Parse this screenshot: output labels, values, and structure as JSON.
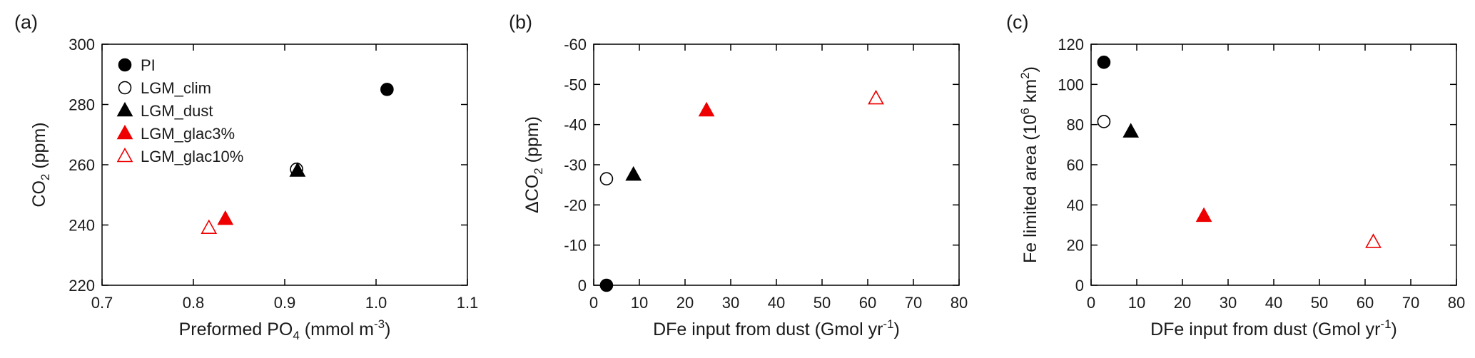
{
  "series_styles": {
    "PI": {
      "marker": "circle",
      "fill": "#000000",
      "stroke": "#000000"
    },
    "LGM_clim": {
      "marker": "circle",
      "fill": "#ffffff",
      "stroke": "#000000"
    },
    "LGM_dust": {
      "marker": "triangle",
      "fill": "#000000",
      "stroke": "#000000"
    },
    "LGM_glac3%": {
      "marker": "triangle",
      "fill": "#ee0000",
      "stroke": "#ee0000"
    },
    "LGM_glac10%": {
      "marker": "triangle",
      "fill": "#ffffff",
      "stroke": "#ee0000"
    }
  },
  "chart_data": [
    {
      "type": "scatter",
      "panel": "(a)",
      "xlabel": "Preformed PO4 (mmol m-3)",
      "ylabel": "CO2 (ppm)",
      "xlim": [
        0.7,
        1.1
      ],
      "ylim": [
        220,
        300
      ],
      "xticks": [
        "0.7",
        "0.8",
        "0.9",
        "1.0",
        "1.1"
      ],
      "yticks": [
        "220",
        "240",
        "260",
        "280",
        "300"
      ],
      "grid": false,
      "legend": {
        "position": "top-left",
        "entries": [
          "PI",
          "LGM_clim",
          "LGM_dust",
          "LGM_glac3%",
          "LGM_glac10%"
        ]
      },
      "series": [
        {
          "name": "PI",
          "x": [
            1.012
          ],
          "y": [
            285
          ]
        },
        {
          "name": "LGM_clim",
          "x": [
            0.913
          ],
          "y": [
            258.5
          ]
        },
        {
          "name": "LGM_dust",
          "x": [
            0.914
          ],
          "y": [
            258
          ]
        },
        {
          "name": "LGM_glac3%",
          "x": [
            0.835
          ],
          "y": [
            242
          ]
        },
        {
          "name": "LGM_glac10%",
          "x": [
            0.817
          ],
          "y": [
            239
          ]
        }
      ]
    },
    {
      "type": "scatter",
      "panel": "(b)",
      "xlabel": "DFe input from dust (Gmol yr-1)",
      "ylabel": "ΔCO2 (ppm)",
      "xlim": [
        0,
        80
      ],
      "ylim": [
        0,
        -60
      ],
      "xticks": [
        "0",
        "10",
        "20",
        "30",
        "40",
        "50",
        "60",
        "70",
        "80"
      ],
      "yticks": [
        "0",
        "-10",
        "-20",
        "-30",
        "-40",
        "-50",
        "-60"
      ],
      "grid": false,
      "series": [
        {
          "name": "PI",
          "x": [
            2.8
          ],
          "y": [
            0
          ]
        },
        {
          "name": "LGM_clim",
          "x": [
            2.8
          ],
          "y": [
            -26.5
          ]
        },
        {
          "name": "LGM_dust",
          "x": [
            8.7
          ],
          "y": [
            -27.5
          ]
        },
        {
          "name": "LGM_glac3%",
          "x": [
            24.7
          ],
          "y": [
            -43.5
          ]
        },
        {
          "name": "LGM_glac10%",
          "x": [
            61.8
          ],
          "y": [
            -46.5
          ]
        }
      ]
    },
    {
      "type": "scatter",
      "panel": "(c)",
      "xlabel": "DFe input from dust (Gmol yr-1)",
      "ylabel": "Fe limited area (10^6 km^2)",
      "xlim": [
        0,
        80
      ],
      "ylim": [
        0,
        120
      ],
      "xticks": [
        "0",
        "10",
        "20",
        "30",
        "40",
        "50",
        "60",
        "70",
        "80"
      ],
      "yticks": [
        "0",
        "20",
        "40",
        "60",
        "80",
        "100",
        "120"
      ],
      "grid": false,
      "series": [
        {
          "name": "PI",
          "x": [
            2.8
          ],
          "y": [
            111
          ]
        },
        {
          "name": "LGM_clim",
          "x": [
            2.8
          ],
          "y": [
            81.5
          ]
        },
        {
          "name": "LGM_dust",
          "x": [
            8.7
          ],
          "y": [
            76.5
          ]
        },
        {
          "name": "LGM_glac3%",
          "x": [
            24.7
          ],
          "y": [
            34.5
          ]
        },
        {
          "name": "LGM_glac10%",
          "x": [
            61.8
          ],
          "y": [
            21.5
          ]
        }
      ]
    }
  ]
}
